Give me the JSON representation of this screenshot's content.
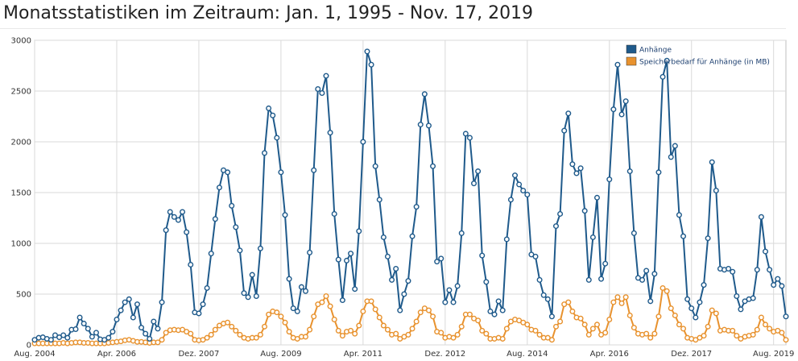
{
  "page": {
    "title": "Monatsstatistiken im Zeitraum: Jan. 1, 1995 - Nov. 17, 2019"
  },
  "colors": {
    "attachments": "#1f5a8b",
    "storage": "#e8922e",
    "grid": "#d9d9d9",
    "plot_bg": "#ffffff"
  },
  "chart_data": {
    "type": "line",
    "title": "Monatsstatistiken im Zeitraum: Jan. 1, 1995 - Nov. 17, 2019",
    "xlabel": "",
    "ylabel": "",
    "ylim": [
      0,
      3000
    ],
    "yticks": [
      "0",
      "500",
      "1000",
      "1500",
      "2000",
      "2500",
      "3000"
    ],
    "xticks": [
      "Aug. 2004",
      "Apr. 2006",
      "Dez. 2007",
      "Aug. 2009",
      "Apr. 2011",
      "Dez. 2012",
      "Aug. 2014",
      "Apr. 2016",
      "Dez. 2017",
      "Aug. 2019"
    ],
    "grid": true,
    "legend_position": "top-right",
    "x_start": "2004-08",
    "x_end": "2019-10",
    "series": [
      {
        "name": "Anhänge",
        "color": "#1f5a8b",
        "values": [
          50,
          70,
          75,
          60,
          50,
          95,
          75,
          95,
          70,
          150,
          155,
          270,
          210,
          160,
          80,
          120,
          55,
          50,
          70,
          130,
          250,
          340,
          420,
          450,
          270,
          400,
          170,
          110,
          60,
          230,
          160,
          420,
          1130,
          1310,
          1260,
          1230,
          1310,
          1110,
          790,
          320,
          310,
          400,
          560,
          900,
          1240,
          1550,
          1720,
          1700,
          1370,
          1160,
          930,
          510,
          470,
          690,
          480,
          950,
          1890,
          2330,
          2260,
          2040,
          1700,
          1280,
          650,
          360,
          330,
          570,
          530,
          910,
          1720,
          2520,
          2480,
          2650,
          2090,
          1290,
          840,
          440,
          830,
          900,
          550,
          1120,
          2000,
          2890,
          2760,
          1760,
          1430,
          1060,
          870,
          640,
          750,
          340,
          500,
          630,
          1070,
          1360,
          2170,
          2470,
          2160,
          1760,
          820,
          850,
          420,
          540,
          420,
          580,
          1100,
          2080,
          2040,
          1590,
          1710,
          880,
          620,
          330,
          300,
          430,
          340,
          1040,
          1430,
          1670,
          1580,
          1520,
          1480,
          890,
          870,
          640,
          490,
          450,
          280,
          1170,
          1290,
          2110,
          2280,
          1780,
          1690,
          1740,
          1320,
          640,
          1060,
          1450,
          650,
          800,
          1630,
          2320,
          2760,
          2270,
          2400,
          1710,
          1100,
          660,
          640,
          730,
          430,
          700,
          1700,
          2640,
          2800,
          1850,
          1960,
          1280,
          1070,
          450,
          360,
          270,
          420,
          590,
          1050,
          1800,
          1520,
          750,
          740,
          750,
          720,
          480,
          350,
          430,
          450,
          460,
          740,
          1260,
          920,
          740,
          590,
          650,
          580,
          280
        ]
      },
      {
        "name": "Speicherbedarf für Anhänge (in MB)",
        "color": "#e8922e",
        "values": [
          15,
          15,
          15,
          15,
          15,
          15,
          15,
          20,
          15,
          20,
          25,
          25,
          20,
          20,
          15,
          15,
          15,
          15,
          20,
          25,
          30,
          35,
          45,
          50,
          40,
          30,
          30,
          25,
          20,
          25,
          25,
          50,
          120,
          145,
          150,
          145,
          150,
          130,
          110,
          50,
          45,
          50,
          70,
          100,
          150,
          190,
          210,
          220,
          180,
          140,
          100,
          70,
          60,
          70,
          70,
          100,
          180,
          300,
          330,
          320,
          280,
          220,
          130,
          70,
          60,
          80,
          80,
          150,
          280,
          400,
          420,
          480,
          380,
          250,
          140,
          90,
          130,
          140,
          110,
          190,
          330,
          430,
          430,
          350,
          270,
          190,
          150,
          100,
          110,
          60,
          80,
          100,
          160,
          230,
          320,
          360,
          340,
          280,
          130,
          120,
          70,
          80,
          70,
          100,
          180,
          300,
          300,
          260,
          240,
          140,
          110,
          60,
          60,
          70,
          60,
          160,
          230,
          250,
          240,
          220,
          200,
          150,
          140,
          100,
          70,
          70,
          50,
          180,
          230,
          400,
          420,
          330,
          270,
          260,
          200,
          100,
          160,
          200,
          100,
          120,
          250,
          420,
          470,
          410,
          470,
          290,
          170,
          110,
          100,
          110,
          70,
          110,
          280,
          560,
          530,
          360,
          290,
          200,
          160,
          70,
          60,
          50,
          70,
          90,
          180,
          340,
          310,
          140,
          150,
          140,
          140,
          90,
          60,
          80,
          90,
          100,
          150,
          270,
          200,
          160,
          130,
          140,
          120,
          50
        ]
      }
    ]
  }
}
